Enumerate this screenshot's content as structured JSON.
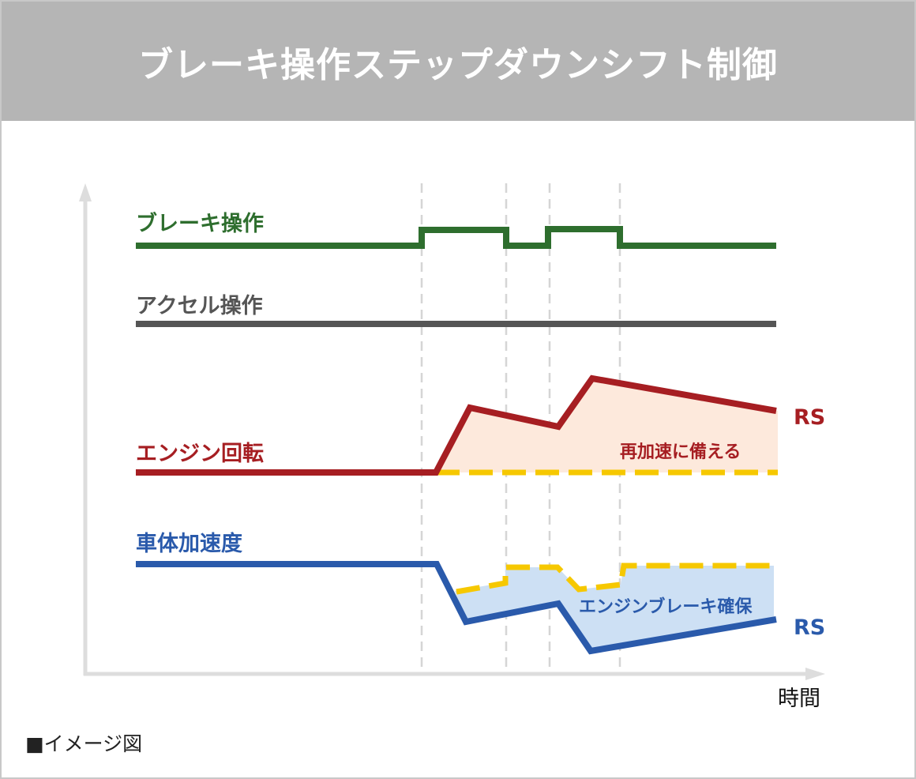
{
  "title": "ブレーキ操作ステップダウンシフト制御",
  "signals": {
    "brake": {
      "label": "ブレーキ操作",
      "color": "#2e6e2e"
    },
    "accel": {
      "label": "アクセル操作",
      "color": "#555555"
    },
    "engine": {
      "label": "エンジン回転",
      "color": "#a61e22",
      "end_label": "RS",
      "annotation": "再加速に備える",
      "fill": "#fde9dc"
    },
    "decel": {
      "label": "車体加速度",
      "color": "#2a5aab",
      "end_label": "RS",
      "annotation": "エンジンブレーキ確保",
      "fill": "#cde0f4"
    }
  },
  "reference_line_color": "#f6c800",
  "x_axis_label": "時間",
  "caption": "■イメージ図"
}
